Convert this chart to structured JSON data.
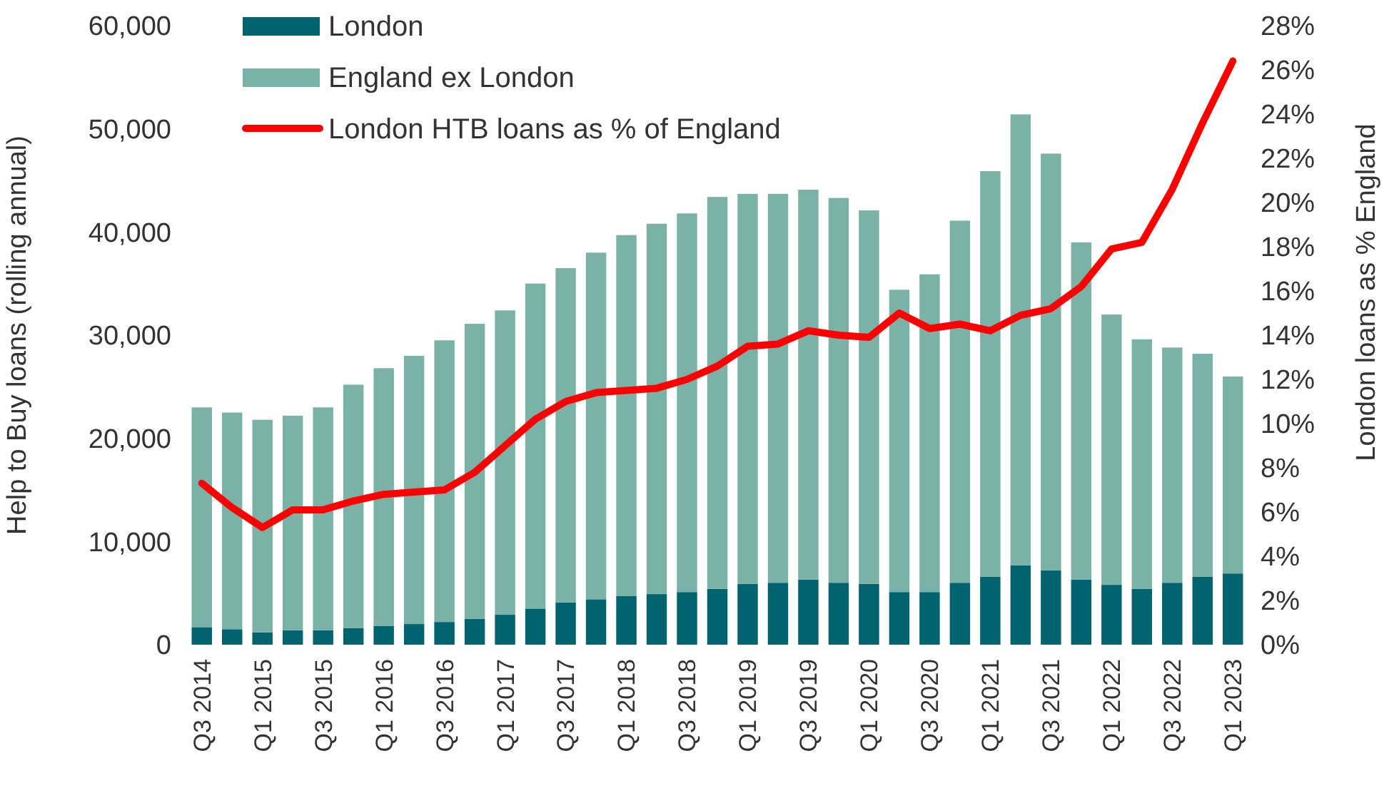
{
  "chart_data": {
    "type": "bar",
    "stacked": true,
    "ylabel": "Help to Buy loans (rolling annual)",
    "y2label": "London loans as % England",
    "categories": [
      "Q3 2014",
      null,
      "Q1 2015",
      null,
      "Q3 2015",
      null,
      "Q1 2016",
      null,
      "Q3 2016",
      null,
      "Q1 2017",
      null,
      "Q3 2017",
      null,
      "Q1 2018",
      null,
      "Q3 2018",
      null,
      "Q1 2019",
      null,
      "Q3 2019",
      null,
      "Q1 2020",
      null,
      "Q3 2020",
      null,
      "Q1 2021",
      null,
      "Q3 2021",
      null,
      "Q1 2022",
      null,
      "Q3 2022",
      null,
      "Q1 2023"
    ],
    "series": [
      {
        "name": "London",
        "color": "#00636e",
        "values": [
          1700,
          1500,
          1200,
          1400,
          1400,
          1600,
          1800,
          2000,
          2200,
          2500,
          2900,
          3500,
          4100,
          4400,
          4700,
          4900,
          5100,
          5400,
          5900,
          6000,
          6300,
          6000,
          5900,
          5100,
          5100,
          6000,
          6600,
          7700,
          7200,
          6300,
          5800,
          5400,
          6000,
          6600,
          6900
        ]
      },
      {
        "name": "England ex London",
        "color": "#7ab2a8",
        "values": [
          21300,
          21000,
          20600,
          20800,
          21600,
          23600,
          25000,
          26000,
          27300,
          28600,
          29500,
          31500,
          32400,
          33600,
          35000,
          35900,
          36700,
          38000,
          37800,
          37700,
          37800,
          37300,
          36200,
          29300,
          30800,
          35100,
          39300,
          43700,
          40400,
          32700,
          26200,
          24200,
          22800,
          21600,
          19100
        ]
      },
      {
        "name": "London HTB loans as % of England",
        "type": "line",
        "axis": "y2",
        "color": "#ff0000",
        "values": [
          7.3,
          6.2,
          5.3,
          6.1,
          6.1,
          6.5,
          6.8,
          6.9,
          7.0,
          7.8,
          9.0,
          10.2,
          11.0,
          11.4,
          11.5,
          11.6,
          12.0,
          12.6,
          13.5,
          13.6,
          14.2,
          14.0,
          13.9,
          15.0,
          14.3,
          14.5,
          14.2,
          14.9,
          15.2,
          16.2,
          17.9,
          18.2,
          20.6,
          23.6,
          26.4
        ]
      }
    ],
    "ylim": [
      0,
      60000
    ],
    "yticks": [
      {
        "value": 0,
        "label": "0"
      },
      {
        "value": 10000,
        "label": "10,000"
      },
      {
        "value": 20000,
        "label": "20,000"
      },
      {
        "value": 30000,
        "label": "30,000"
      },
      {
        "value": 40000,
        "label": "40,000"
      },
      {
        "value": 50000,
        "label": "50,000"
      },
      {
        "value": 60000,
        "label": "60,000"
      }
    ],
    "y2lim": [
      0,
      28
    ],
    "y2ticks": [
      {
        "value": 0,
        "label": "0%"
      },
      {
        "value": 2,
        "label": "2%"
      },
      {
        "value": 4,
        "label": "4%"
      },
      {
        "value": 6,
        "label": "6%"
      },
      {
        "value": 8,
        "label": "8%"
      },
      {
        "value": 10,
        "label": "10%"
      },
      {
        "value": 12,
        "label": "12%"
      },
      {
        "value": 14,
        "label": "14%"
      },
      {
        "value": 16,
        "label": "16%"
      },
      {
        "value": 18,
        "label": "18%"
      },
      {
        "value": 20,
        "label": "20%"
      },
      {
        "value": 22,
        "label": "22%"
      },
      {
        "value": 24,
        "label": "24%"
      },
      {
        "value": 26,
        "label": "26%"
      },
      {
        "value": 28,
        "label": "28%"
      }
    ],
    "legend": "top left",
    "grid": false
  }
}
